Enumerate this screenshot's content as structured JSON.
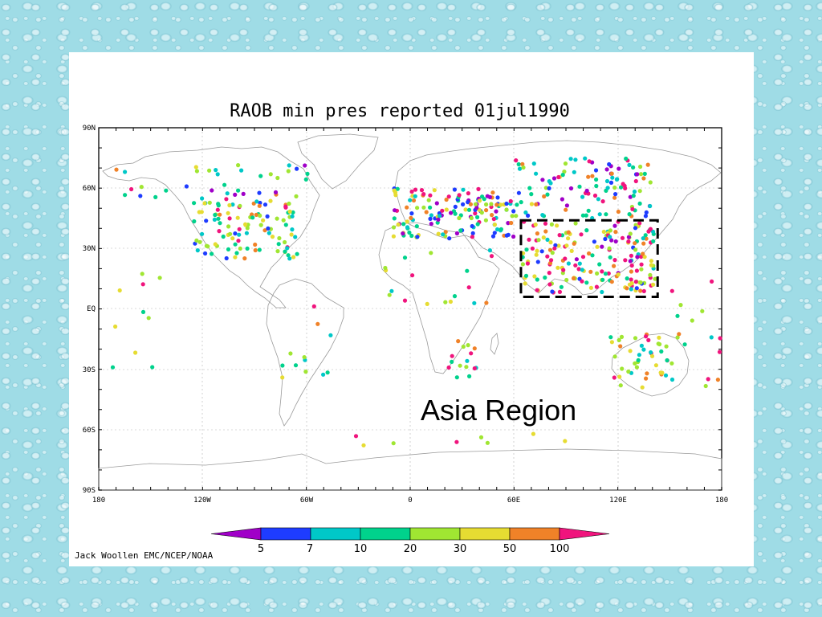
{
  "slide": {
    "title": "RAOB min pres reported 01jul1990",
    "annotation": "Asia Region",
    "credit": "Jack Woollen EMC/NCEP/NOAA"
  },
  "map": {
    "lat_ticks": [
      "90N",
      "60N",
      "30N",
      "EQ",
      "30S",
      "60S",
      "90S"
    ],
    "lon_ticks": [
      "180",
      "120W",
      "60W",
      "0",
      "60E",
      "120E",
      "180"
    ],
    "region_box": {
      "lon_min": 64,
      "lon_max": 143,
      "lat_min": 6,
      "lat_max": 44
    }
  },
  "legend": {
    "ticks": [
      "5",
      "7",
      "10",
      "20",
      "30",
      "50",
      "100"
    ],
    "colors": [
      "#a000c8",
      "#1e3cff",
      "#00c8c8",
      "#00d28c",
      "#a0e632",
      "#e6dc32",
      "#f08228",
      "#f0147d"
    ]
  }
}
